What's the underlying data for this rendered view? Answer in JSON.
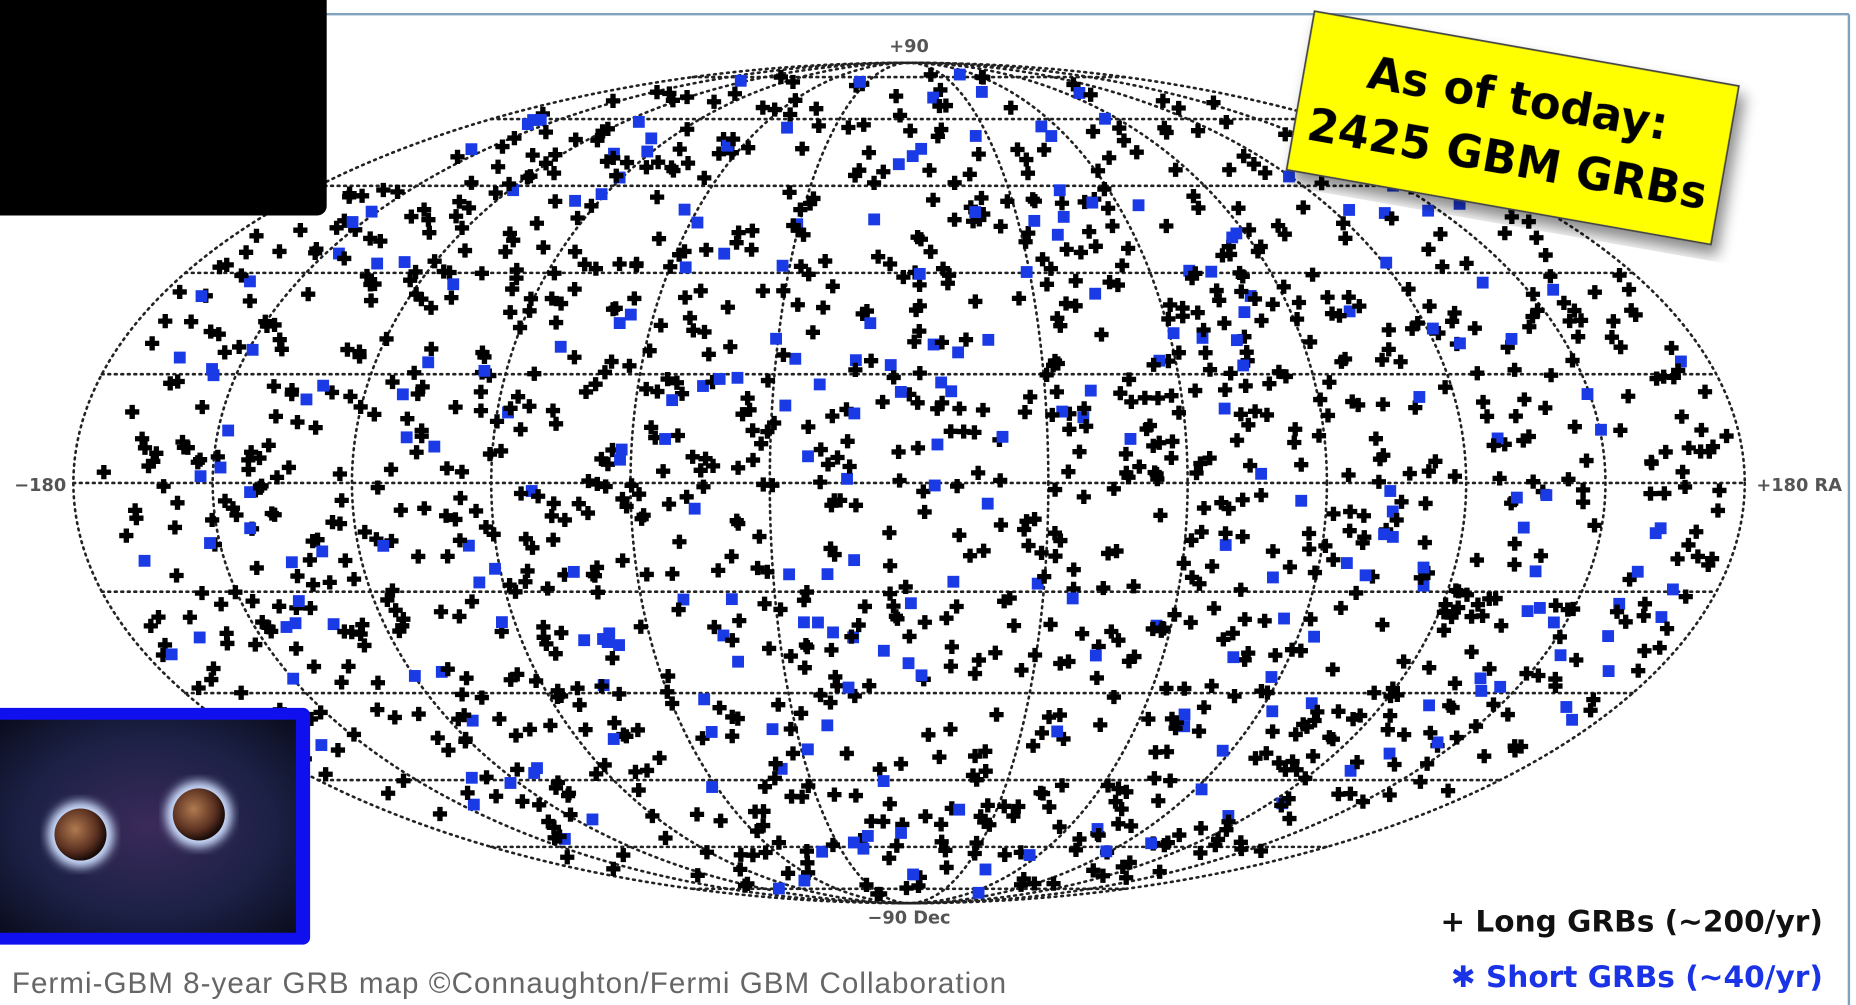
{
  "map": {
    "labels": {
      "north": "+90",
      "south": "−90 Dec",
      "west": "−180",
      "east": "+180 RA"
    },
    "callout": {
      "line1": "As of today:",
      "line2": "2425 GBM GRBs"
    },
    "legend": {
      "long": "+ Long GRBs (∼200/yr)",
      "short": "✱ Short GRBs (∼40/yr)"
    },
    "caption": "Fermi-GBM 8-year GRB map ©Connaughton/Fermi GBM Collaboration"
  }
}
